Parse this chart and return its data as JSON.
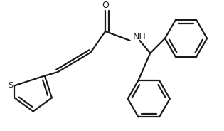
{
  "background_color": "#ffffff",
  "line_color": "#1a1a1a",
  "nh_color": "#1a1a1a",
  "o_color": "#1a1a1a",
  "s_color": "#1a1a1a",
  "line_width": 1.6,
  "figsize": [
    3.15,
    1.84
  ],
  "dpi": 100,
  "xlim": [
    0,
    315
  ],
  "ylim": [
    0,
    184
  ]
}
